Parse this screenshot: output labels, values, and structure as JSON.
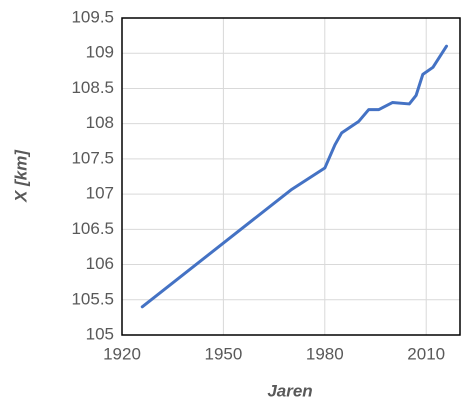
{
  "chart_data": {
    "type": "line",
    "x_label": "Jaren",
    "y_label": "X [km]",
    "x": [
      1926,
      1970,
      1980,
      1983,
      1985,
      1990,
      1993,
      1996,
      2000,
      2005,
      2007,
      2009,
      2012,
      2016
    ],
    "series": [
      {
        "name": "X",
        "color": "#4472c4",
        "values": [
          105.4,
          107.06,
          107.37,
          107.7,
          107.87,
          108.03,
          108.2,
          108.2,
          108.3,
          108.28,
          108.4,
          108.7,
          108.8,
          109.1
        ]
      }
    ],
    "xlim": [
      1920,
      2020
    ],
    "xticks": [
      1920,
      1950,
      1980,
      2010
    ],
    "ylim": [
      105,
      109.5
    ],
    "yticks": [
      105,
      105.5,
      106,
      106.5,
      107,
      107.5,
      108,
      108.5,
      109,
      109.5
    ],
    "grid": true
  }
}
